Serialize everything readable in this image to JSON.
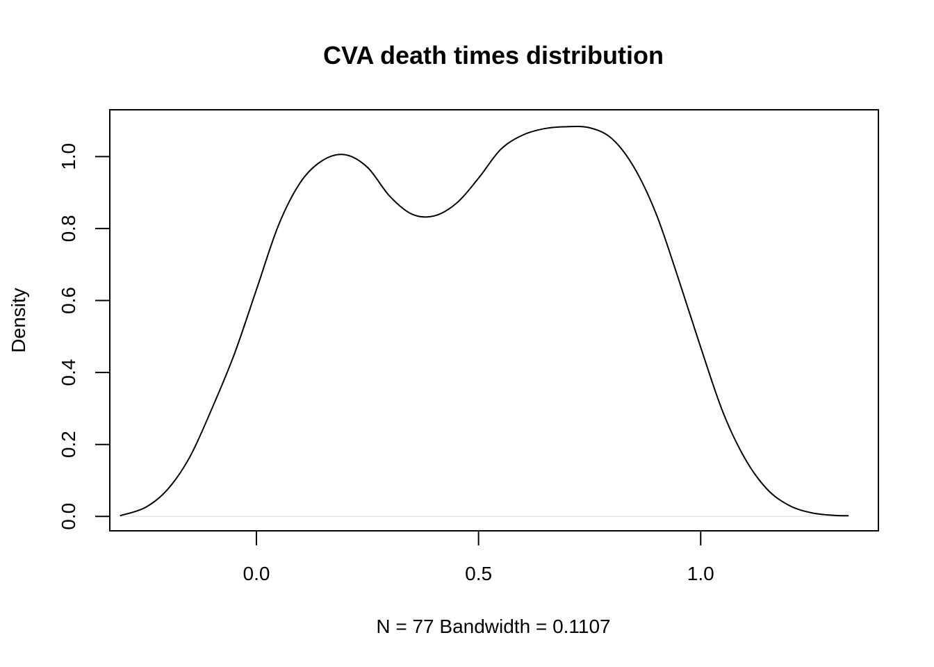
{
  "chart_data": {
    "type": "line",
    "title": "CVA death times distribution",
    "xlabel": "N = 77   Bandwidth = 0.1107",
    "ylabel": "Density",
    "xlim": [
      -0.33,
      1.4
    ],
    "ylim": [
      -0.04,
      1.13
    ],
    "x_ticks": [
      0.0,
      0.5,
      1.0
    ],
    "x_tick_labels": [
      "0.0",
      "0.5",
      "1.0"
    ],
    "y_ticks": [
      0.0,
      0.2,
      0.4,
      0.6,
      0.8,
      1.0
    ],
    "y_tick_labels": [
      "0.0",
      "0.2",
      "0.4",
      "0.6",
      "0.8",
      "1.0"
    ],
    "grid": false,
    "legend": "none",
    "series": [
      {
        "x": [
          -0.307,
          -0.25,
          -0.2,
          -0.15,
          -0.1,
          -0.05,
          0.0,
          0.05,
          0.1,
          0.15,
          0.2,
          0.25,
          0.3,
          0.35,
          0.4,
          0.45,
          0.5,
          0.55,
          0.6,
          0.65,
          0.7,
          0.75,
          0.8,
          0.85,
          0.9,
          0.95,
          1.0,
          1.05,
          1.1,
          1.15,
          1.2,
          1.25,
          1.3,
          1.333
        ],
        "y": [
          0.002,
          0.025,
          0.075,
          0.165,
          0.3,
          0.45,
          0.63,
          0.81,
          0.93,
          0.99,
          1.005,
          0.97,
          0.89,
          0.84,
          0.835,
          0.87,
          0.94,
          1.02,
          1.06,
          1.078,
          1.083,
          1.08,
          1.05,
          0.97,
          0.84,
          0.66,
          0.47,
          0.29,
          0.16,
          0.075,
          0.03,
          0.01,
          0.003,
          0.002
        ]
      }
    ]
  }
}
